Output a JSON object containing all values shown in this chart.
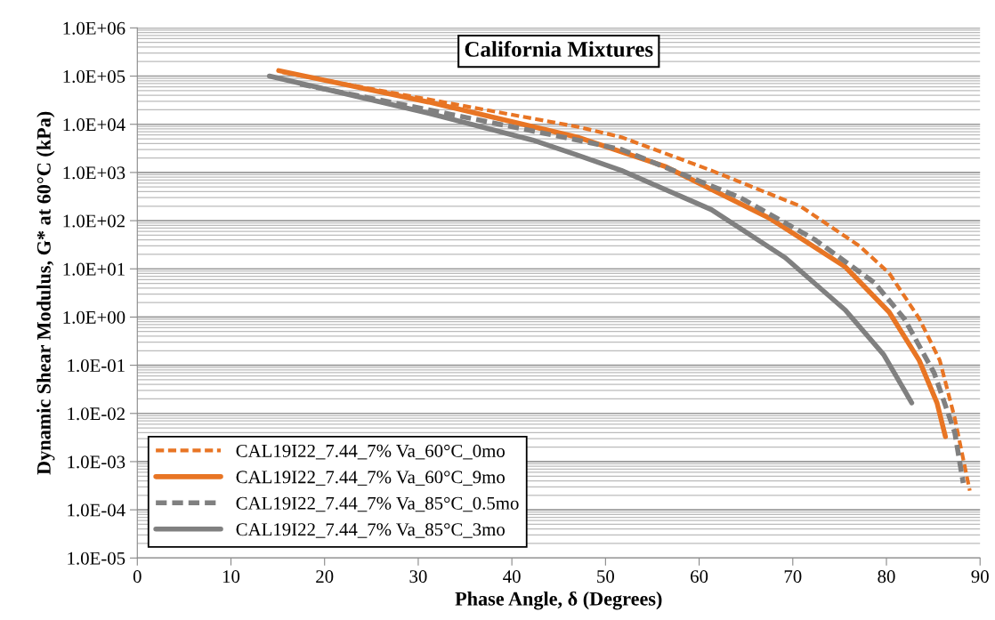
{
  "chart_data": {
    "type": "line",
    "title": "California Mixtures",
    "xlabel": "Phase Angle, δ (Degrees)",
    "ylabel": "Dynamic Shear Modulus, G* at 60°C (kPa)",
    "log": "y",
    "grid": "y",
    "legend": "bottom left",
    "marker": "none",
    "xlim": [
      0,
      90
    ],
    "xticks": [
      0,
      10,
      20,
      30,
      40,
      50,
      60,
      70,
      80,
      90
    ],
    "ylim": [
      1e-05,
      1000000.0
    ],
    "yticks": [
      {
        "value": 1e-05,
        "label": "1.0E-05"
      },
      {
        "value": 0.0001,
        "label": "1.0E-04"
      },
      {
        "value": 0.001,
        "label": "1.0E-03"
      },
      {
        "value": 0.01,
        "label": "1.0E-02"
      },
      {
        "value": 0.1,
        "label": "1.0E-01"
      },
      {
        "value": 1,
        "label": "1.0E+00"
      },
      {
        "value": 10,
        "label": "1.0E+01"
      },
      {
        "value": 100,
        "label": "1.0E+02"
      },
      {
        "value": 1000,
        "label": "1.0E+03"
      },
      {
        "value": 10000,
        "label": "1.0E+04"
      },
      {
        "value": 100000,
        "label": "1.0E+05"
      },
      {
        "value": 1000000,
        "label": "1.0E+06"
      }
    ],
    "series": [
      {
        "name": "CAL19I22_7.44_7% Va_60°C_0mo",
        "color": "#e87524",
        "line_style": "dashed",
        "x": [
          15.5,
          24.8,
          47,
          51.7,
          61.3,
          70.8,
          77.1,
          80.3,
          83.5,
          85.7,
          87.3,
          88.9
        ],
        "values": [
          120000,
          55000,
          8900,
          5400,
          1100,
          200,
          30,
          8.1,
          0.93,
          0.126,
          0.0079,
          0.00025
        ]
      },
      {
        "name": "CAL19I22_7.44_7% Va_60°C_9mo",
        "color": "#e87524",
        "line_style": "solid",
        "x": [
          15.1,
          31.1,
          47,
          56.5,
          67.6,
          75.6,
          80.3,
          83.5,
          85.4,
          86.3
        ],
        "values": [
          130000,
          29000,
          5400,
          1300,
          110,
          11,
          1.26,
          0.126,
          0.0166,
          0.0033
        ]
      },
      {
        "name": "CAL19I22_7.44_7% Va_85°C_0.5mo",
        "color": "#808080",
        "line_style": "dashed",
        "x": [
          17.4,
          31.1,
          47,
          51.7,
          64.4,
          72.4,
          78.7,
          81.9,
          85.1,
          87.3,
          88.2
        ],
        "values": [
          68000,
          20000,
          4700,
          3000,
          300,
          40,
          5.2,
          0.93,
          0.069,
          0.004,
          0.00036
        ]
      },
      {
        "name": "CAL19I22_7.44_7% Va_85°C_3mo",
        "color": "#808080",
        "line_style": "solid",
        "x": [
          14.1,
          31.1,
          42.2,
          47,
          51.7,
          61.3,
          69.2,
          75.6,
          79.7,
          82.7
        ],
        "values": [
          100000,
          17000,
          4700,
          2300,
          1100,
          170,
          17,
          1.4,
          0.166,
          0.0166
        ]
      }
    ]
  }
}
